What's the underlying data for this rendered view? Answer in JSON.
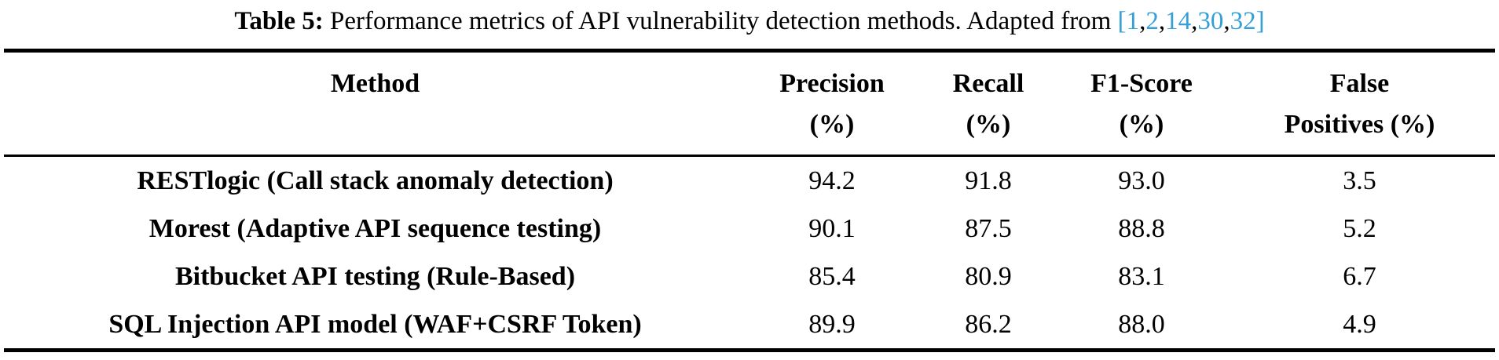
{
  "caption": {
    "label": "Table 5:",
    "text": "Performance metrics of API vulnerability detection methods. Adapted from",
    "citation": {
      "open_bracket": "[",
      "close_bracket": "]",
      "separator": ",",
      "refs": [
        "1",
        "2",
        "14",
        "30",
        "32"
      ]
    }
  },
  "colors": {
    "link_blue": "#359FD7",
    "text": "#000000",
    "rule": "#000000"
  },
  "table": {
    "headers": [
      {
        "line1": "Method",
        "line2": ""
      },
      {
        "line1": "Precision",
        "line2": "(%)"
      },
      {
        "line1": "Recall",
        "line2": "(%)"
      },
      {
        "line1": "F1-Score",
        "line2": "(%)"
      },
      {
        "line1": "False",
        "line2": "Positives (%)"
      }
    ],
    "rows": [
      {
        "method": "RESTlogic (Call stack anomaly detection)",
        "values": [
          "94.2",
          "91.8",
          "93.0",
          "3.5"
        ]
      },
      {
        "method": "Morest (Adaptive API sequence testing)",
        "values": [
          "90.1",
          "87.5",
          "88.8",
          "5.2"
        ]
      },
      {
        "method": "Bitbucket API testing (Rule-Based)",
        "values": [
          "85.4",
          "80.9",
          "83.1",
          "6.7"
        ]
      },
      {
        "method": "SQL Injection API model (WAF+CSRF Token)",
        "values": [
          "89.9",
          "86.2",
          "88.0",
          "4.9"
        ]
      }
    ]
  }
}
